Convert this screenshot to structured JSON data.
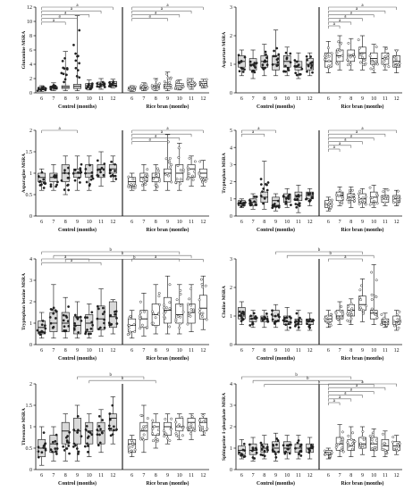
{
  "colors": {
    "control_fill": "#d9d9d9",
    "rice_fill": "#ffffff",
    "axis": "#111111",
    "bracket": "#666666",
    "point": "#222222"
  },
  "group_labels": [
    "Control (months)",
    "Rice bran (months)"
  ],
  "month_ticks": [
    "6",
    "7",
    "8",
    "9",
    "10",
    "11",
    "12"
  ],
  "sig_letters": [
    "a",
    "b"
  ],
  "chart_data": [
    {
      "type": "box",
      "ylabel": "Glutamine MSRA",
      "ylim": [
        0,
        12
      ],
      "yticks": [
        0,
        2,
        4,
        6,
        8,
        10,
        12
      ],
      "control_medians": [
        0.6,
        0.7,
        0.8,
        0.9,
        1.0,
        1.2,
        1.3
      ],
      "control_q1": [
        0.4,
        0.5,
        0.6,
        0.6,
        0.7,
        0.9,
        1.0
      ],
      "control_q3": [
        0.8,
        0.9,
        1.0,
        1.2,
        1.3,
        1.5,
        1.6
      ],
      "control_min": [
        0.2,
        0.3,
        0.3,
        0.3,
        0.4,
        0.5,
        0.7
      ],
      "control_max": [
        1.0,
        1.4,
        5.8,
        10.8,
        1.8,
        2.0,
        1.9
      ],
      "rice_medians": [
        0.6,
        0.7,
        0.8,
        0.9,
        1.0,
        1.2,
        1.3
      ],
      "rice_q1": [
        0.4,
        0.5,
        0.6,
        0.6,
        0.7,
        0.9,
        1.0
      ],
      "rice_q3": [
        0.8,
        0.9,
        1.0,
        1.2,
        1.3,
        1.5,
        1.6
      ],
      "rice_min": [
        0.2,
        0.3,
        0.3,
        0.3,
        0.4,
        0.5,
        0.7
      ],
      "rice_max": [
        1.0,
        1.4,
        2.0,
        2.9,
        1.8,
        2.0,
        1.9
      ],
      "control_brackets": [
        [
          6,
          12,
          "a"
        ],
        [
          6,
          11,
          "a"
        ],
        [
          6,
          10,
          "a"
        ],
        [
          6,
          9,
          "a"
        ],
        [
          6,
          8,
          "a"
        ]
      ],
      "rice_brackets": [
        [
          6,
          12,
          "a"
        ],
        [
          6,
          11,
          "a"
        ],
        [
          6,
          10,
          "a"
        ],
        [
          6,
          9,
          "a"
        ]
      ]
    },
    {
      "type": "box",
      "ylabel": "Aspartate MSRA",
      "ylim": [
        0,
        3
      ],
      "yticks": [
        0,
        1,
        2,
        3
      ],
      "control_medians": [
        1.1,
        1.0,
        1.1,
        1.0,
        1.1,
        0.9,
        1.0
      ],
      "control_q1": [
        0.9,
        0.8,
        0.9,
        0.8,
        0.9,
        0.8,
        0.8
      ],
      "control_q3": [
        1.3,
        1.2,
        1.3,
        1.3,
        1.3,
        1.1,
        1.2
      ],
      "control_min": [
        0.6,
        0.5,
        0.6,
        0.6,
        0.6,
        0.5,
        0.6
      ],
      "control_max": [
        1.5,
        1.5,
        1.7,
        2.2,
        1.6,
        1.4,
        1.4
      ],
      "rice_medians": [
        1.1,
        1.3,
        1.3,
        1.4,
        1.2,
        1.2,
        1.1
      ],
      "rice_q1": [
        0.9,
        1.1,
        1.1,
        1.2,
        1.0,
        1.0,
        0.9
      ],
      "rice_q3": [
        1.4,
        1.5,
        1.5,
        1.6,
        1.4,
        1.4,
        1.3
      ],
      "rice_min": [
        0.7,
        0.8,
        0.8,
        0.8,
        0.7,
        0.8,
        0.7
      ],
      "rice_max": [
        1.8,
        2.0,
        1.9,
        2.0,
        1.7,
        1.6,
        1.5
      ],
      "control_brackets": [],
      "rice_brackets": [
        [
          6,
          12,
          "a"
        ],
        [
          6,
          11,
          "a"
        ],
        [
          6,
          10,
          "a"
        ],
        [
          6,
          9,
          "a"
        ],
        [
          6,
          8,
          "a"
        ],
        [
          6,
          7,
          "a"
        ]
      ]
    },
    {
      "type": "box",
      "ylabel": "Asparagine MSRA",
      "ylim": [
        0,
        2.0
      ],
      "yticks": [
        0,
        0.5,
        1.0,
        1.5,
        2.0
      ],
      "control_medians": [
        0.9,
        0.9,
        1.0,
        1.0,
        1.0,
        1.1,
        1.1
      ],
      "control_q1": [
        0.8,
        0.8,
        0.8,
        0.9,
        0.9,
        0.9,
        1.0
      ],
      "control_q3": [
        1.0,
        1.0,
        1.2,
        1.1,
        1.2,
        1.2,
        1.2
      ],
      "control_min": [
        0.6,
        0.6,
        0.5,
        0.6,
        0.6,
        0.7,
        0.8
      ],
      "control_max": [
        1.1,
        1.2,
        1.4,
        1.4,
        1.4,
        1.5,
        1.4
      ],
      "rice_medians": [
        0.8,
        0.9,
        0.9,
        1.0,
        1.0,
        1.1,
        1.0
      ],
      "rice_q1": [
        0.7,
        0.8,
        0.8,
        0.8,
        0.8,
        0.9,
        0.9
      ],
      "rice_q3": [
        0.9,
        1.0,
        1.0,
        1.1,
        1.2,
        1.2,
        1.1
      ],
      "rice_min": [
        0.6,
        0.6,
        0.6,
        0.6,
        0.6,
        0.7,
        0.7
      ],
      "rice_max": [
        1.0,
        1.2,
        1.2,
        1.9,
        1.7,
        1.4,
        1.3
      ],
      "control_brackets": [
        [
          6,
          9,
          "a"
        ]
      ],
      "rice_brackets": [
        [
          6,
          12,
          "a"
        ],
        [
          6,
          11,
          "a"
        ],
        [
          6,
          10,
          "a"
        ],
        [
          6,
          9,
          "a"
        ]
      ]
    },
    {
      "type": "box",
      "ylabel": "Tryptophan MSRA",
      "ylim": [
        0,
        5
      ],
      "yticks": [
        0,
        1,
        2,
        3,
        4,
        5
      ],
      "control_medians": [
        0.7,
        0.8,
        1.1,
        0.9,
        1.1,
        1.2,
        1.2
      ],
      "control_q1": [
        0.6,
        0.6,
        0.8,
        0.6,
        0.8,
        0.9,
        1.0
      ],
      "control_q3": [
        0.9,
        1.0,
        1.4,
        1.1,
        1.3,
        1.4,
        1.4
      ],
      "control_min": [
        0.5,
        0.4,
        0.4,
        0.3,
        0.5,
        0.2,
        0.6
      ],
      "control_max": [
        1.0,
        1.3,
        3.2,
        1.3,
        1.6,
        1.8,
        1.6
      ],
      "rice_medians": [
        0.7,
        1.2,
        1.1,
        1.0,
        1.1,
        1.0,
        1.0
      ],
      "rice_q1": [
        0.5,
        0.9,
        0.9,
        0.8,
        0.8,
        0.8,
        0.8
      ],
      "rice_q3": [
        0.9,
        1.4,
        1.3,
        1.3,
        1.4,
        1.2,
        1.2
      ],
      "rice_min": [
        0.3,
        0.6,
        0.5,
        0.5,
        0.5,
        0.6,
        0.6
      ],
      "rice_max": [
        1.1,
        1.7,
        1.7,
        1.6,
        1.8,
        1.6,
        1.5
      ],
      "control_brackets": [
        [
          6,
          9,
          "a"
        ],
        [
          6,
          8,
          "a"
        ]
      ],
      "rice_brackets": [
        [
          6,
          12,
          "a"
        ],
        [
          6,
          11,
          "a"
        ],
        [
          6,
          10,
          "a"
        ],
        [
          6,
          9,
          "a"
        ],
        [
          6,
          8,
          "a"
        ],
        [
          6,
          7,
          "a"
        ]
      ]
    },
    {
      "type": "box",
      "ylabel": "Tryptophan betaine MSRA",
      "ylim": [
        0,
        4
      ],
      "yticks": [
        0,
        1,
        2,
        3,
        4
      ],
      "control_medians": [
        0.8,
        1.0,
        1.0,
        0.9,
        1.0,
        1.2,
        1.3
      ],
      "control_q1": [
        0.5,
        0.6,
        0.6,
        0.5,
        0.6,
        0.7,
        0.8
      ],
      "control_q3": [
        1.1,
        1.5,
        1.5,
        1.3,
        1.4,
        1.8,
        2.0
      ],
      "control_min": [
        0.3,
        0.3,
        0.3,
        0.3,
        0.3,
        0.4,
        0.5
      ],
      "control_max": [
        1.5,
        2.8,
        2.2,
        2.0,
        1.9,
        2.6,
        2.1
      ],
      "rice_medians": [
        0.9,
        1.2,
        1.4,
        1.6,
        1.4,
        1.5,
        1.7
      ],
      "rice_q1": [
        0.6,
        0.8,
        0.9,
        1.0,
        1.0,
        1.0,
        1.2
      ],
      "rice_q3": [
        1.2,
        1.6,
        1.9,
        2.2,
        1.9,
        1.9,
        2.3
      ],
      "rice_min": [
        0.3,
        0.4,
        0.5,
        0.5,
        0.5,
        0.6,
        0.7
      ],
      "rice_max": [
        1.6,
        2.4,
        2.8,
        3.2,
        2.8,
        2.8,
        3.2
      ],
      "control_brackets": [
        [
          6,
          10,
          "a"
        ],
        [
          6,
          11,
          "a"
        ]
      ],
      "rice_brackets": [
        [
          6,
          10,
          "a"
        ]
      ],
      "cross_brackets": [
        [
          6,
          10,
          "b"
        ],
        [
          7,
          11,
          "b"
        ],
        [
          8,
          12,
          "b"
        ]
      ]
    },
    {
      "type": "box",
      "ylabel": "Choline MSRA",
      "ylim": [
        0,
        3
      ],
      "yticks": [
        0,
        1,
        2,
        3
      ],
      "control_medians": [
        1.0,
        0.9,
        0.9,
        1.0,
        0.8,
        0.8,
        0.8
      ],
      "control_q1": [
        0.9,
        0.8,
        0.8,
        0.8,
        0.7,
        0.7,
        0.7
      ],
      "control_q3": [
        1.3,
        1.0,
        1.0,
        1.2,
        1.0,
        0.9,
        0.9
      ],
      "control_min": [
        0.7,
        0.6,
        0.6,
        0.6,
        0.5,
        0.5,
        0.5
      ],
      "control_max": [
        1.5,
        1.2,
        1.2,
        1.4,
        1.3,
        1.2,
        1.1
      ],
      "rice_medians": [
        0.9,
        1.0,
        1.2,
        1.4,
        1.1,
        0.8,
        0.8
      ],
      "rice_q1": [
        0.8,
        0.9,
        1.0,
        1.2,
        0.9,
        0.7,
        0.7
      ],
      "rice_q3": [
        1.0,
        1.2,
        1.4,
        1.7,
        1.2,
        0.9,
        1.0
      ],
      "rice_min": [
        0.6,
        0.7,
        0.7,
        0.8,
        0.7,
        0.6,
        0.5
      ],
      "rice_max": [
        1.2,
        1.5,
        1.6,
        2.3,
        2.8,
        1.1,
        1.2
      ],
      "control_brackets": [],
      "rice_brackets": [
        [
          6,
          9,
          "a"
        ]
      ],
      "cross_brackets": [
        [
          9,
          9,
          "b"
        ],
        [
          10,
          10,
          "b"
        ]
      ]
    },
    {
      "type": "box",
      "ylabel": "Threonate MSRA",
      "ylim": [
        0,
        2.0
      ],
      "yticks": [
        0,
        0.5,
        1.0,
        1.5,
        2.0
      ],
      "control_medians": [
        0.5,
        0.6,
        0.9,
        0.9,
        0.9,
        0.9,
        1.2
      ],
      "control_q1": [
        0.3,
        0.4,
        0.6,
        0.6,
        0.6,
        0.6,
        0.9
      ],
      "control_q3": [
        0.7,
        0.8,
        1.1,
        1.2,
        1.1,
        1.1,
        1.3
      ],
      "control_min": [
        0.1,
        0.2,
        0.2,
        0.2,
        0.3,
        0.4,
        0.6
      ],
      "control_max": [
        1.0,
        1.0,
        1.3,
        1.5,
        1.3,
        1.4,
        1.7
      ],
      "rice_medians": [
        0.6,
        0.9,
        1.0,
        1.0,
        1.0,
        1.1,
        1.1
      ],
      "rice_q1": [
        0.4,
        0.7,
        0.8,
        0.8,
        0.9,
        0.9,
        0.9
      ],
      "rice_q3": [
        0.7,
        1.1,
        1.1,
        1.1,
        1.2,
        1.2,
        1.2
      ],
      "rice_min": [
        0.3,
        0.4,
        0.5,
        0.6,
        0.7,
        0.7,
        0.8
      ],
      "rice_max": [
        0.8,
        1.5,
        1.3,
        1.3,
        1.3,
        1.3,
        1.3
      ],
      "control_brackets": [],
      "rice_brackets": [],
      "cross_brackets": [
        [
          9,
          7,
          "b"
        ],
        [
          10,
          8,
          "b"
        ]
      ]
    },
    {
      "type": "box",
      "ylabel": "Sphingosine 1-phosphate MSRA",
      "ylim": [
        0,
        4
      ],
      "yticks": [
        0,
        1,
        2,
        3,
        4
      ],
      "control_medians": [
        0.9,
        0.9,
        1.0,
        1.0,
        1.0,
        1.0,
        1.0
      ],
      "control_q1": [
        0.7,
        0.7,
        0.8,
        0.8,
        0.8,
        0.8,
        0.8
      ],
      "control_q3": [
        1.1,
        1.2,
        1.2,
        1.3,
        1.3,
        1.2,
        1.2
      ],
      "control_min": [
        0.5,
        0.4,
        0.5,
        0.4,
        0.5,
        0.5,
        0.5
      ],
      "control_max": [
        1.4,
        1.5,
        1.6,
        1.7,
        1.6,
        1.6,
        1.5
      ],
      "rice_medians": [
        0.8,
        1.2,
        1.1,
        1.2,
        1.2,
        1.1,
        1.1
      ],
      "rice_q1": [
        0.7,
        0.9,
        0.9,
        1.0,
        0.9,
        0.9,
        0.9
      ],
      "rice_q3": [
        0.9,
        1.5,
        1.4,
        1.5,
        1.5,
        1.4,
        1.3
      ],
      "rice_min": [
        0.5,
        0.6,
        0.6,
        0.7,
        0.6,
        0.6,
        0.7
      ],
      "rice_max": [
        1.0,
        2.1,
        2.0,
        2.0,
        1.9,
        1.8,
        1.6
      ],
      "control_brackets": [],
      "rice_brackets": [
        [
          6,
          12,
          "a"
        ],
        [
          6,
          11,
          "a"
        ],
        [
          6,
          10,
          "a"
        ],
        [
          6,
          9,
          "a"
        ],
        [
          6,
          8,
          "a"
        ],
        [
          6,
          7,
          "a"
        ]
      ],
      "cross_brackets": [
        [
          6,
          8,
          "b"
        ],
        [
          7,
          9,
          "b"
        ],
        [
          8,
          10,
          "b"
        ]
      ]
    }
  ]
}
